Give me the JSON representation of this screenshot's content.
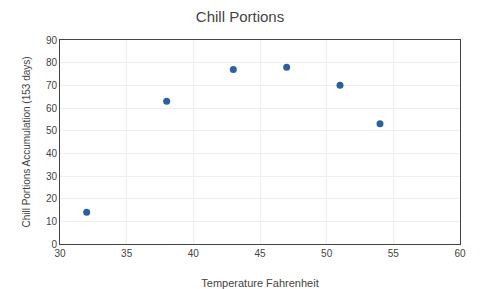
{
  "chart_data": {
    "type": "scatter",
    "title": "Chill Portions",
    "xlabel": "Temperature Fahrenheit",
    "ylabel": "Chill Portions Accumulation (153 days)",
    "x": [
      32,
      38,
      43,
      47,
      51,
      54
    ],
    "values": [
      14,
      63,
      77,
      78,
      70,
      53
    ],
    "color": "#2e5fa3",
    "marker": "circle",
    "xlim": [
      30,
      60
    ],
    "ylim": [
      0,
      90
    ],
    "xticks": [
      30,
      35,
      40,
      45,
      50,
      55,
      60
    ],
    "yticks": [
      0,
      10,
      20,
      30,
      40,
      50,
      60,
      70,
      80,
      90
    ],
    "grid": true
  }
}
